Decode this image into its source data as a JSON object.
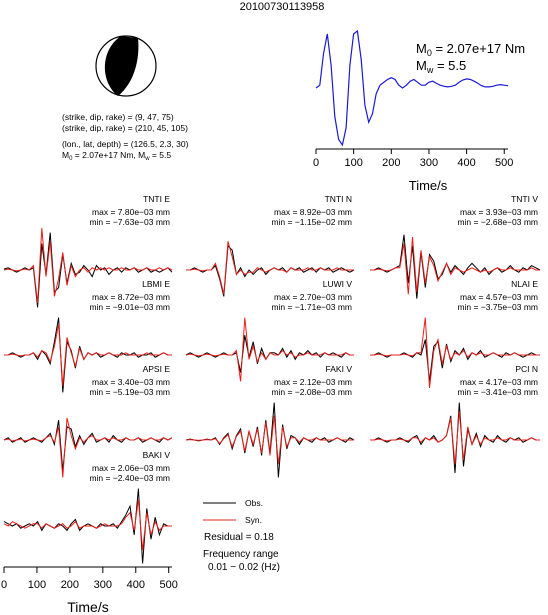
{
  "event_id": "20100730113958",
  "mechanism": {
    "nodal_plane_1": "(strike, dip, rake) = (9, 47, 75)",
    "nodal_plane_2": "(strike, dip, rake) = (210, 45, 105)",
    "location": "(lon., lat, depth) = (126.5, 2.3, 30)",
    "m0_prefix": "M",
    "m0_sub": "0",
    "m0_value": " = 2.07e+17 Nm, M",
    "mw_sub": "w",
    "mw_value": " = 5.5"
  },
  "stf_label": {
    "m0_prefix": "M",
    "m0_sub": "0",
    "m0_value": " = 2.07e+17 Nm",
    "mw_prefix": "M",
    "mw_sub": "w",
    "mw_value": " = 5.5"
  },
  "legend": {
    "obs": "Obs.",
    "syn": "Syn.",
    "residual": "Residual = 0.18",
    "freq_title": "Frequency range",
    "freq_range": "0.01 − 0.02 (Hz)"
  },
  "colors": {
    "observed": "#000000",
    "synthetic": "#e8201a",
    "stf": "#1a1ad6"
  },
  "chart_data": [
    {
      "type": "line",
      "title": "20100730113958",
      "xlabel": "Time/s",
      "xlim": [
        0,
        510
      ],
      "xticks": [
        "0",
        "100",
        "200",
        "300",
        "400",
        "500"
      ],
      "series": [
        {
          "x": [
            0,
            10,
            20,
            30,
            40,
            50,
            60,
            70,
            80,
            90,
            100,
            110,
            120,
            130,
            140,
            150,
            160,
            170,
            180,
            190,
            200,
            210,
            220,
            230,
            240,
            250,
            260,
            270,
            280,
            290,
            300,
            310,
            320,
            330,
            340,
            350,
            360,
            370,
            380,
            390,
            400,
            410,
            420,
            430,
            440,
            450,
            460,
            470,
            480,
            490,
            500,
            510
          ],
          "values": [
            0.0,
            0.05,
            0.6,
            0.95,
            0.4,
            -0.5,
            -0.9,
            -1.0,
            -0.7,
            0.4,
            0.95,
            1.0,
            0.5,
            -0.3,
            -0.6,
            -0.45,
            -0.1,
            0.05,
            0.1,
            0.15,
            0.18,
            0.15,
            0.05,
            0.0,
            0.05,
            0.12,
            0.15,
            0.1,
            0.05,
            0.05,
            0.1,
            0.12,
            0.08,
            0.05,
            0.03,
            0.02,
            0.03,
            0.05,
            0.1,
            0.14,
            0.16,
            0.15,
            0.12,
            0.08,
            0.04,
            0.02,
            0.02,
            0.03,
            0.05,
            0.06,
            0.05,
            0.04
          ]
        }
      ]
    },
    {
      "type": "line",
      "panels": [
        {
          "label": "TNTI E",
          "max": "max = 7.80e−03 mm",
          "min": "min = −7.63e−03 mm",
          "obs": [
            0.02,
            0.05,
            0.0,
            -0.05,
            0.0,
            0.05,
            0.0,
            0.05,
            -0.85,
            0.6,
            -0.1,
            0.85,
            -0.5,
            -0.4,
            0.35,
            -0.3,
            0.15,
            -0.1,
            -0.05,
            0.1,
            0.0,
            -0.15,
            0.1,
            0.0,
            0.05,
            -0.1,
            0.0,
            0.05,
            -0.05,
            0.05,
            0.0,
            0.05,
            -0.05,
            0.0,
            0.05,
            -0.05,
            0.0,
            -0.05,
            0.0,
            0.05,
            -0.05
          ],
          "syn": [
            0.0,
            0.02,
            0.0,
            -0.02,
            0.0,
            0.02,
            0.0,
            0.1,
            -0.75,
            0.95,
            -0.15,
            0.65,
            -0.6,
            -0.2,
            0.4,
            -0.35,
            0.1,
            -0.15,
            0.0,
            0.05,
            -0.05,
            0.05,
            0.0,
            0.05,
            0.0,
            0.05,
            0.0,
            0.0,
            0.05,
            0.0,
            0.0,
            0.05,
            0.0,
            0.0,
            0.05,
            0.0,
            0.0,
            0.05,
            0.0,
            0.05,
            0.0
          ]
        },
        {
          "label": "TNTI N",
          "max": "max = 8.92e−03 mm",
          "min": "min = −1.15e−02 mm",
          "obs": [
            0.0,
            0.0,
            0.05,
            0.0,
            -0.05,
            0.0,
            0.0,
            0.1,
            -0.2,
            -0.6,
            0.55,
            0.45,
            -0.1,
            0.05,
            -0.15,
            0.0,
            -0.1,
            0.0,
            0.05,
            -0.1,
            0.0,
            0.05,
            0.0,
            0.05,
            -0.05,
            0.05,
            0.0,
            0.05,
            -0.05,
            0.0,
            0.05,
            -0.05,
            0.05,
            0.0,
            0.05,
            -0.05,
            0.0,
            0.05,
            0.0,
            -0.05,
            0.0
          ],
          "syn": [
            0.0,
            0.0,
            0.02,
            0.0,
            -0.02,
            0.0,
            0.0,
            0.15,
            -0.15,
            -0.55,
            0.65,
            0.3,
            -0.1,
            0.0,
            -0.1,
            -0.05,
            -0.05,
            0.05,
            0.0,
            -0.05,
            0.0,
            0.05,
            0.0,
            0.0,
            -0.05,
            0.05,
            0.0,
            0.0,
            0.0,
            0.05,
            0.0,
            0.0,
            0.05,
            0.0,
            0.0,
            0.0,
            0.05,
            0.0,
            0.0,
            0.0,
            0.0
          ]
        },
        {
          "label": "TNTI V",
          "max": "max = 3.93e−03 mm",
          "min": "min = −2.68e−03 mm",
          "obs": [
            0.0,
            0.0,
            0.05,
            0.0,
            -0.05,
            0.0,
            0.05,
            0.1,
            0.8,
            -0.3,
            0.55,
            -0.65,
            0.4,
            -0.4,
            0.35,
            0.2,
            -0.2,
            -0.1,
            0.15,
            -0.05,
            0.1,
            0.0,
            -0.1,
            0.05,
            0.15,
            0.05,
            -0.05,
            0.05,
            -0.1,
            0.0,
            0.05,
            -0.05,
            0.0,
            0.1,
            0.0,
            -0.05,
            0.05,
            0.0,
            0.1,
            0.05,
            0.0
          ],
          "syn": [
            0.0,
            0.0,
            0.02,
            0.0,
            -0.02,
            0.0,
            0.05,
            0.05,
            0.6,
            -0.55,
            0.75,
            -0.5,
            0.45,
            -0.3,
            0.3,
            0.1,
            -0.25,
            -0.05,
            0.15,
            -0.1,
            0.05,
            0.0,
            -0.05,
            0.0,
            0.05,
            0.0,
            -0.05,
            0.0,
            -0.05,
            0.0,
            0.05,
            0.0,
            0.0,
            0.05,
            0.0,
            0.0,
            0.0,
            0.0,
            0.05,
            0.0,
            0.0
          ]
        },
        {
          "label": "LBMI E",
          "max": "max = 8.72e−03 mm",
          "min": "min = −9.01e−03 mm",
          "obs": [
            0.0,
            0.0,
            0.05,
            0.0,
            -0.05,
            0.0,
            0.0,
            0.05,
            -0.1,
            0.1,
            0.0,
            -0.2,
            0.3,
            0.85,
            -0.85,
            0.3,
            0.1,
            -0.3,
            0.2,
            -0.1,
            0.05,
            0.0,
            0.05,
            -0.05,
            0.0,
            0.05,
            0.0,
            -0.05,
            0.05,
            0.0,
            0.0,
            0.05,
            -0.05,
            0.0,
            0.0,
            0.05,
            -0.05,
            0.0,
            0.05,
            0.0,
            0.0
          ],
          "syn": [
            0.0,
            0.0,
            0.02,
            0.0,
            -0.02,
            0.0,
            0.0,
            0.05,
            -0.05,
            0.1,
            0.05,
            -0.15,
            0.2,
            0.7,
            -0.7,
            0.4,
            0.05,
            -0.25,
            0.15,
            -0.1,
            0.05,
            0.0,
            0.05,
            0.0,
            0.0,
            0.05,
            0.0,
            0.0,
            0.0,
            0.05,
            0.0,
            0.0,
            0.0,
            0.0,
            0.05,
            0.0,
            0.0,
            0.0,
            0.05,
            0.0,
            0.0
          ]
        },
        {
          "label": "LUWI V",
          "max": "max = 2.70e−03 mm",
          "min": "min = −1.71e−03 mm",
          "obs": [
            0.0,
            0.05,
            0.0,
            -0.05,
            0.0,
            0.05,
            0.0,
            -0.05,
            0.0,
            0.05,
            0.0,
            0.0,
            0.05,
            -0.4,
            0.45,
            -0.05,
            0.3,
            -0.2,
            0.15,
            -0.1,
            0.05,
            0.05,
            0.0,
            0.15,
            -0.05,
            0.1,
            -0.1,
            0.05,
            0.0,
            0.1,
            0.0,
            0.05,
            -0.05,
            0.05,
            0.0,
            0.05,
            0.0,
            -0.05,
            0.05,
            0.0,
            0.0
          ],
          "syn": [
            0.0,
            0.02,
            0.0,
            -0.02,
            0.0,
            0.02,
            0.0,
            -0.02,
            0.0,
            0.02,
            0.0,
            0.0,
            0.1,
            -0.6,
            0.85,
            -0.1,
            0.2,
            -0.15,
            0.05,
            -0.1,
            0.05,
            0.0,
            0.0,
            0.1,
            0.0,
            0.05,
            -0.05,
            0.0,
            0.0,
            0.05,
            0.0,
            0.0,
            0.0,
            0.05,
            0.0,
            0.0,
            0.0,
            0.0,
            0.05,
            0.0,
            0.0
          ]
        },
        {
          "label": "NLAI E",
          "max": "max = 4.57e−03 mm",
          "min": "min = −3.75e−03 mm",
          "obs": [
            0.0,
            0.0,
            0.05,
            0.0,
            -0.05,
            0.0,
            0.0,
            0.0,
            0.05,
            0.0,
            -0.05,
            0.05,
            0.0,
            0.35,
            -0.6,
            0.2,
            0.3,
            -0.3,
            0.25,
            -0.15,
            0.1,
            0.0,
            0.15,
            -0.1,
            0.05,
            0.0,
            0.1,
            -0.05,
            0.0,
            0.05,
            0.0,
            -0.05,
            0.05,
            0.0,
            0.05,
            0.0,
            -0.05,
            0.0,
            0.05,
            0.0,
            0.0
          ],
          "syn": [
            0.0,
            0.0,
            0.02,
            0.0,
            -0.02,
            0.0,
            0.0,
            0.0,
            0.02,
            0.0,
            -0.02,
            0.05,
            0.05,
            0.85,
            -0.75,
            0.1,
            0.35,
            -0.2,
            0.2,
            -0.1,
            0.05,
            0.0,
            0.1,
            -0.05,
            0.05,
            0.0,
            0.05,
            0.0,
            0.0,
            0.05,
            0.0,
            0.0,
            0.0,
            0.0,
            0.05,
            0.0,
            0.0,
            0.0,
            0.0,
            0.0,
            0.0
          ]
        },
        {
          "label": "APSI E",
          "max": "max = 3.40e−03 mm",
          "min": "min = −5.19e−03 mm",
          "obs": [
            0.0,
            0.05,
            -0.05,
            0.0,
            0.05,
            -0.05,
            0.0,
            0.05,
            0.0,
            -0.05,
            0.05,
            0.15,
            -0.1,
            0.45,
            -0.7,
            0.3,
            0.25,
            -0.15,
            0.1,
            -0.1,
            0.05,
            0.15,
            -0.05,
            0.0,
            0.05,
            -0.05,
            0.1,
            0.0,
            -0.05,
            0.05,
            0.0,
            0.0,
            0.05,
            -0.05,
            0.0,
            0.05,
            0.0,
            -0.05,
            0.05,
            0.0,
            0.05
          ],
          "syn": [
            0.0,
            0.02,
            -0.02,
            0.0,
            0.02,
            -0.02,
            0.0,
            0.02,
            0.0,
            -0.02,
            0.05,
            0.1,
            -0.05,
            0.3,
            -0.85,
            0.5,
            0.1,
            -0.2,
            0.05,
            -0.05,
            0.05,
            0.1,
            0.0,
            0.0,
            0.05,
            0.0,
            0.05,
            0.0,
            0.0,
            0.05,
            0.0,
            0.0,
            0.05,
            0.0,
            0.0,
            0.05,
            0.0,
            0.0,
            0.05,
            0.0,
            0.05
          ]
        },
        {
          "label": "FAKI V",
          "max": "max = 2.12e−03 mm",
          "min": "min = −2.08e−03 mm",
          "obs": [
            0.0,
            0.02,
            0.0,
            -0.02,
            0.0,
            0.02,
            0.0,
            0.05,
            -0.1,
            0.05,
            0.15,
            -0.2,
            0.1,
            0.25,
            -0.3,
            0.2,
            -0.15,
            0.3,
            -0.35,
            0.45,
            -0.3,
            0.85,
            -0.85,
            0.35,
            -0.2,
            0.1,
            0.05,
            -0.1,
            0.05,
            0.0,
            -0.05,
            0.05,
            0.0,
            0.05,
            -0.05,
            0.0,
            0.05,
            0.0,
            -0.05,
            0.05,
            0.0
          ],
          "syn": [
            0.0,
            0.01,
            0.0,
            -0.01,
            0.0,
            0.01,
            0.0,
            0.03,
            -0.08,
            0.03,
            0.12,
            -0.15,
            0.08,
            0.2,
            -0.25,
            0.2,
            -0.1,
            0.25,
            -0.3,
            0.4,
            -0.35,
            0.55,
            -0.55,
            0.3,
            -0.15,
            0.05,
            0.05,
            -0.05,
            0.05,
            0.0,
            0.0,
            0.05,
            0.0,
            0.0,
            0.0,
            0.0,
            0.05,
            0.0,
            0.0,
            0.0,
            0.0
          ]
        },
        {
          "label": "PCI N",
          "max": "max = 4.17e−03 mm",
          "min": "min = −3.41e−03 mm",
          "obs": [
            0.0,
            0.0,
            0.05,
            0.0,
            -0.05,
            0.0,
            0.0,
            0.05,
            0.0,
            -0.05,
            0.05,
            0.1,
            -0.1,
            0.05,
            0.0,
            0.1,
            -0.05,
            0.0,
            0.1,
            0.55,
            -0.75,
            0.85,
            -0.6,
            0.25,
            -0.1,
            0.15,
            -0.15,
            0.1,
            0.0,
            -0.05,
            0.1,
            0.0,
            -0.05,
            0.05,
            0.0,
            0.05,
            -0.05,
            0.0,
            0.05,
            0.0,
            0.0
          ],
          "syn": [
            0.0,
            0.0,
            0.02,
            0.0,
            -0.02,
            0.0,
            0.0,
            0.02,
            0.0,
            -0.02,
            0.05,
            0.05,
            -0.05,
            0.05,
            0.0,
            0.05,
            -0.05,
            0.0,
            0.1,
            0.5,
            -0.55,
            0.65,
            -0.45,
            0.3,
            -0.1,
            0.1,
            -0.1,
            0.05,
            0.0,
            0.0,
            0.05,
            0.0,
            0.0,
            0.05,
            0.0,
            0.0,
            0.0,
            0.0,
            0.05,
            0.0,
            0.0
          ]
        },
        {
          "label": "BAKI V",
          "max": "max = 2.06e−03 mm",
          "min": "min = −2.40e−03 mm",
          "obs": [
            0.1,
            0.05,
            0.0,
            0.05,
            -0.05,
            0.0,
            0.05,
            0.0,
            0.1,
            -0.1,
            0.05,
            0.0,
            -0.05,
            0.05,
            0.0,
            -0.1,
            0.05,
            0.15,
            -0.1,
            0.0,
            0.05,
            0.0,
            -0.05,
            0.05,
            0.0,
            0.0,
            0.05,
            -0.05,
            0.1,
            0.25,
            0.45,
            -0.2,
            0.85,
            -0.85,
            0.4,
            -0.3,
            0.2,
            -0.2,
            0.05,
            0.0,
            0.0
          ],
          "syn": [
            0.05,
            0.0,
            0.1,
            0.05,
            0.0,
            -0.05,
            0.0,
            0.05,
            0.05,
            -0.05,
            0.05,
            0.0,
            -0.05,
            0.0,
            0.05,
            -0.05,
            0.0,
            0.1,
            -0.05,
            0.0,
            0.0,
            0.0,
            -0.05,
            0.0,
            0.05,
            0.0,
            0.0,
            0.0,
            0.05,
            0.2,
            0.3,
            -0.1,
            0.6,
            -0.55,
            0.3,
            -0.2,
            0.1,
            -0.1,
            0.0,
            0.0,
            0.0
          ]
        }
      ],
      "xlabel": "Time/s",
      "xlim": [
        0,
        510
      ],
      "xticks": [
        "0",
        "100",
        "200",
        "300",
        "400",
        "500"
      ]
    }
  ]
}
